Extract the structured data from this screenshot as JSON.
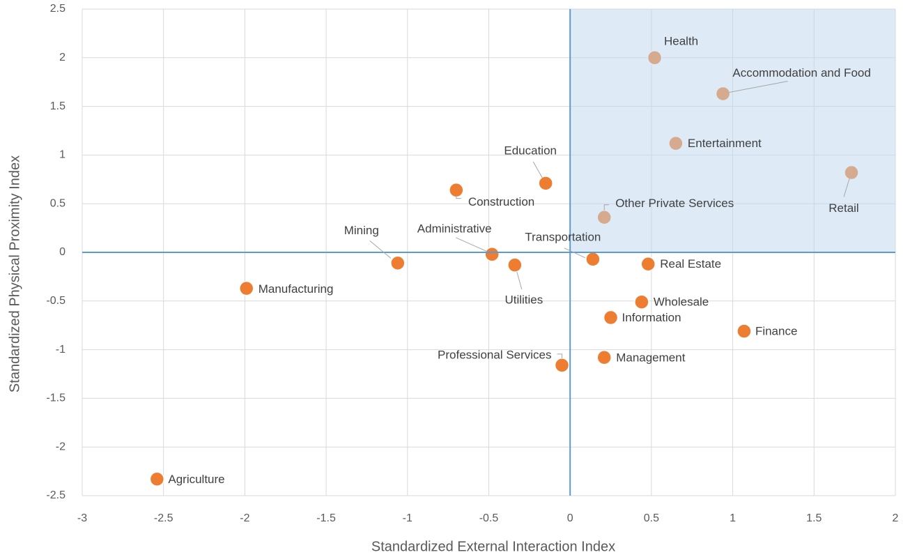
{
  "chart_data": {
    "type": "scatter",
    "x_label": "Standardized External Interaction Index",
    "y_label": "Standardized Physical Proximity Index",
    "color": "#ED7D31",
    "grid": true,
    "xlim": [
      -3,
      2
    ],
    "ylim": [
      -2.5,
      2.5
    ],
    "xticks": [
      -3,
      -2.5,
      -2,
      -1.5,
      -1,
      -0.5,
      0,
      0.5,
      1,
      1.5,
      2
    ],
    "yticks": [
      -2.5,
      -2,
      -1.5,
      -1,
      -0.5,
      0,
      0.5,
      1,
      1.5,
      2,
      2.5
    ],
    "point_labels": [
      "Health",
      "Accommodation and Food",
      "Entertainment",
      "Retail",
      "Education",
      "Construction",
      "Other Private Services",
      "Mining",
      "Administrative",
      "Utilities",
      "Transportation",
      "Real Estate",
      "Manufacturing",
      "Wholesale",
      "Information",
      "Finance",
      "Management",
      "Professional Services",
      "Agriculture"
    ],
    "x": [
      0.52,
      0.94,
      0.65,
      1.73,
      -0.15,
      -0.7,
      0.21,
      -1.06,
      -0.48,
      -0.34,
      0.14,
      0.48,
      -1.99,
      0.44,
      0.25,
      1.07,
      0.21,
      -0.05,
      -2.54
    ],
    "values": [
      2.0,
      1.63,
      1.12,
      0.82,
      0.71,
      0.64,
      0.36,
      -0.11,
      -0.02,
      -0.13,
      -0.07,
      -0.12,
      -0.37,
      -0.51,
      -0.67,
      -0.81,
      -1.08,
      -1.16,
      -2.33
    ]
  }
}
